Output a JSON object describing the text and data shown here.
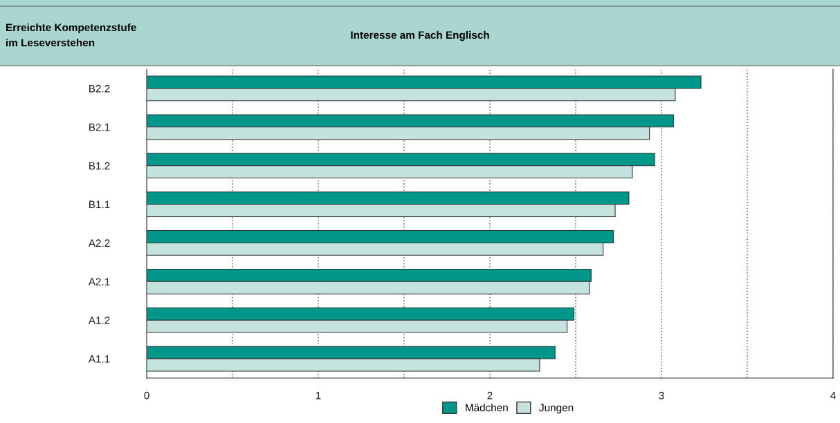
{
  "chart_data": {
    "type": "bar",
    "orientation": "horizontal",
    "title": "Interesse am Fach Englisch",
    "ylabel": "Erreichte Kompetenzstufe\nim Leseverstehen",
    "categories": [
      "B2.2",
      "B2.1",
      "B1.2",
      "B1.1",
      "A2.2",
      "A2.1",
      "A1.2",
      "A1.1"
    ],
    "series": [
      {
        "name": "Mädchen",
        "color": "#00978b",
        "values": [
          3.23,
          3.07,
          2.96,
          2.81,
          2.72,
          2.59,
          2.49,
          2.38
        ]
      },
      {
        "name": "Jungen",
        "color": "#c4e2de",
        "values": [
          3.08,
          2.93,
          2.83,
          2.73,
          2.66,
          2.58,
          2.45,
          2.29
        ]
      }
    ],
    "xlim": [
      0,
      4
    ],
    "xticks": [
      0,
      {
        "value": 0.5,
        "label": null
      },
      1,
      {
        "value": 1.5,
        "label": null
      },
      2,
      {
        "value": 2.5,
        "label": null
      },
      3,
      {
        "value": 3.5,
        "label": null
      },
      4
    ],
    "grid": "x",
    "legend": "bottom"
  }
}
